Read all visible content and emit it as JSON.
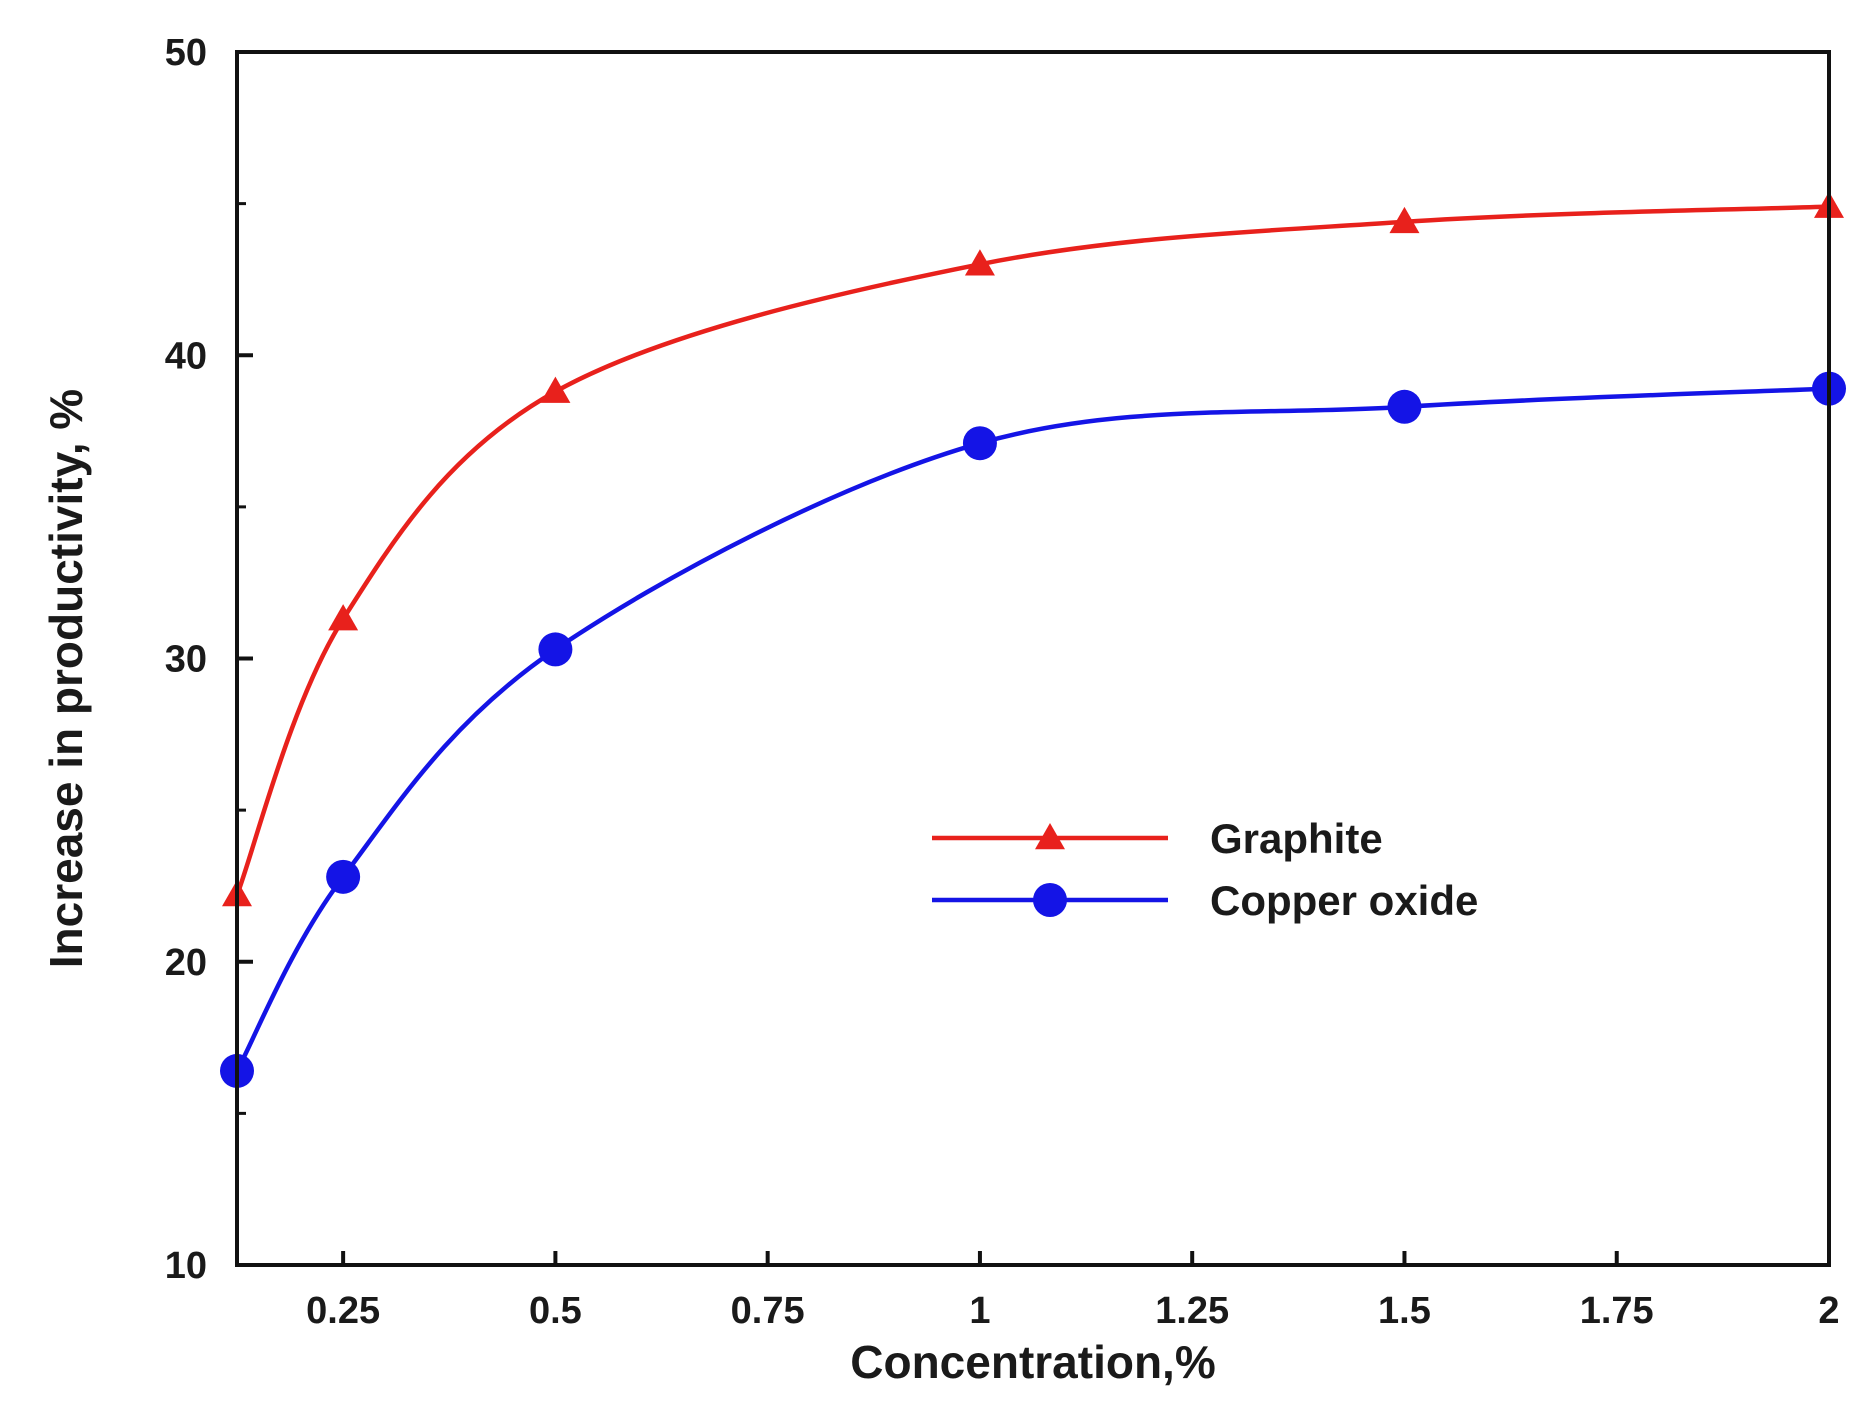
{
  "chart_data": {
    "type": "line",
    "xlabel": "Concentration,%",
    "ylabel": "Increase in productivity, %",
    "xlim": [
      0.125,
      2
    ],
    "ylim": [
      10,
      50
    ],
    "x_ticks": [
      {
        "value": 0.25,
        "label": "0.25"
      },
      {
        "value": 0.5,
        "label": "0.5"
      },
      {
        "value": 0.75,
        "label": "0.75"
      },
      {
        "value": 1,
        "label": "1"
      },
      {
        "value": 1.25,
        "label": "1.25"
      },
      {
        "value": 1.5,
        "label": "1.5"
      },
      {
        "value": 1.75,
        "label": "1.75"
      },
      {
        "value": 2,
        "label": "2"
      }
    ],
    "y_ticks": [
      {
        "value": 10,
        "label": "10"
      },
      {
        "value": 20,
        "label": "20"
      },
      {
        "value": 30,
        "label": "30"
      },
      {
        "value": 40,
        "label": "40"
      },
      {
        "value": 50,
        "label": "50"
      }
    ],
    "grid": false,
    "legend_position": "center-right",
    "series": [
      {
        "name": "Graphite",
        "color": "#e8211c",
        "marker": "triangle",
        "x": [
          0.125,
          0.25,
          0.5,
          1,
          1.5,
          2
        ],
        "y": [
          22.2,
          31.3,
          38.8,
          43,
          44.4,
          44.9
        ]
      },
      {
        "name": "Copper oxide",
        "color": "#1414e6",
        "marker": "circle",
        "x": [
          0.125,
          0.25,
          0.5,
          1,
          1.5,
          2
        ],
        "y": [
          16.4,
          22.8,
          30.3,
          37.1,
          38.3,
          38.9
        ]
      }
    ]
  }
}
